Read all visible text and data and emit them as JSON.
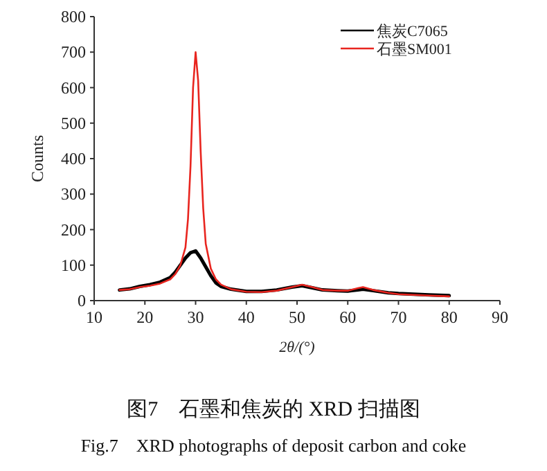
{
  "chart_data": {
    "type": "line",
    "title": "图7　石墨和焦炭的 XRD 扫描图",
    "subtitle": "Fig.7　XRD photographs of deposit carbon and coke",
    "xlabel": "2θ/(°)",
    "ylabel": "Counts",
    "xlim": [
      10,
      90
    ],
    "xticks": [
      10,
      20,
      30,
      40,
      50,
      60,
      70,
      80,
      90
    ],
    "ylim": [
      0,
      800
    ],
    "yticks": [
      0,
      100,
      200,
      300,
      400,
      500,
      600,
      700,
      800
    ],
    "grid": false,
    "legend": "top right",
    "marker": "none",
    "line_style": "solid",
    "series": [
      {
        "name": "焦炭C7065",
        "color": "#000000",
        "x": [
          15,
          17,
          19,
          21,
          23,
          25,
          26,
          27,
          28,
          29,
          30,
          31,
          32,
          33,
          34,
          35,
          37,
          40,
          43,
          46,
          49,
          51,
          53,
          55,
          58,
          60,
          62,
          63,
          65,
          68,
          70,
          73,
          76,
          78,
          80
        ],
        "values": [
          30,
          33,
          40,
          45,
          52,
          65,
          80,
          100,
          120,
          135,
          140,
          120,
          95,
          70,
          50,
          40,
          32,
          26,
          26,
          30,
          38,
          42,
          36,
          30,
          28,
          27,
          30,
          32,
          28,
          22,
          20,
          18,
          16,
          15,
          14
        ]
      },
      {
        "name": "石墨SM001",
        "color": "#e8251f",
        "x": [
          15,
          17,
          19,
          21,
          23,
          25,
          26,
          27,
          28,
          28.5,
          29,
          29.5,
          30,
          30.5,
          31,
          31.5,
          32,
          33,
          34,
          35,
          37,
          40,
          43,
          46,
          49,
          51,
          53,
          55,
          58,
          60,
          62,
          63,
          65,
          68,
          70,
          73,
          76,
          78,
          80
        ],
        "values": [
          30,
          32,
          38,
          42,
          48,
          60,
          75,
          100,
          150,
          230,
          380,
          600,
          700,
          620,
          420,
          260,
          160,
          90,
          60,
          45,
          32,
          25,
          24,
          28,
          38,
          45,
          38,
          30,
          28,
          28,
          35,
          38,
          30,
          22,
          18,
          16,
          14,
          13,
          12
        ]
      }
    ]
  }
}
